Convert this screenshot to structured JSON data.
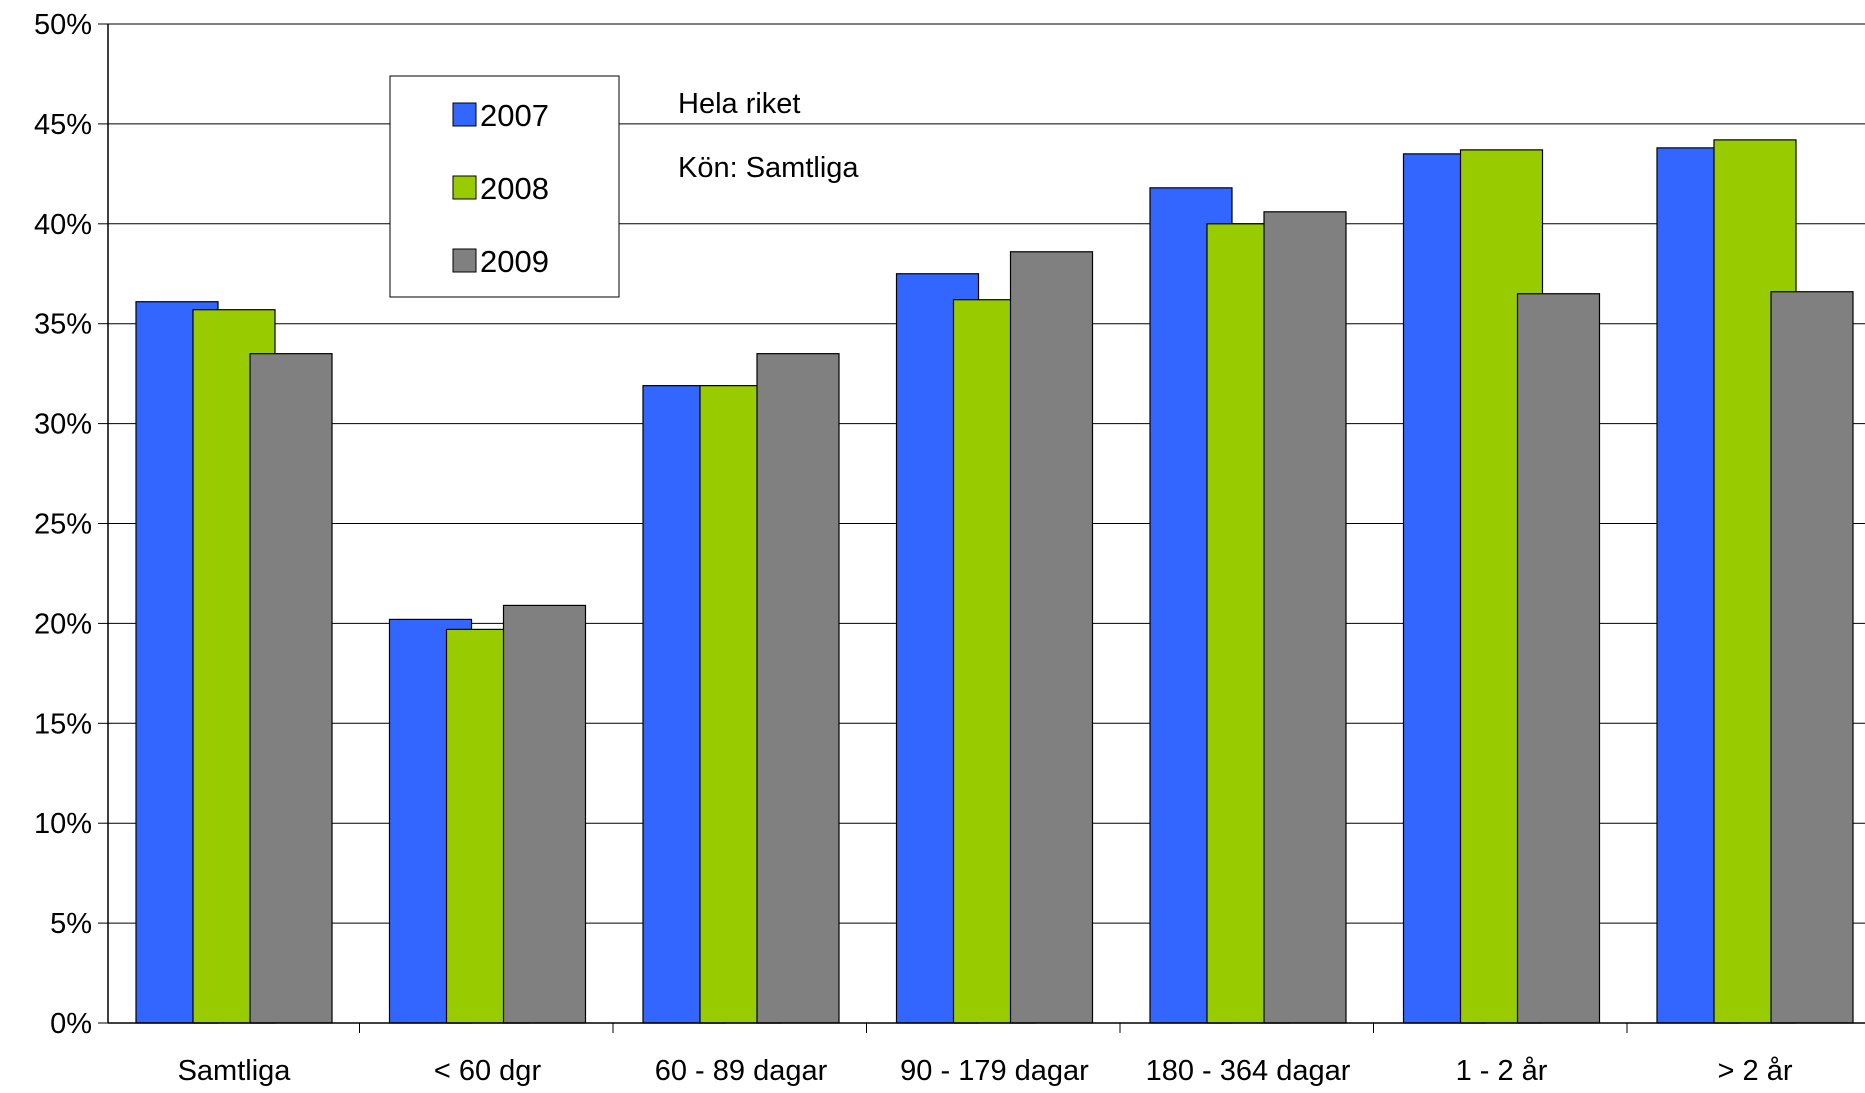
{
  "chart_data": {
    "type": "bar",
    "title": "",
    "xlabel": "",
    "ylabel": "",
    "ylim": [
      0,
      50
    ],
    "y_tick_step": 5,
    "y_tick_suffix": "%",
    "grid": true,
    "legend_position": "top-left",
    "categories": [
      "Samtliga",
      "< 60 dgr",
      "60 - 89 dagar",
      "90 - 179 dagar",
      "180 - 364 dagar",
      "1 - 2 år",
      "> 2 år"
    ],
    "series": [
      {
        "name": "2007",
        "color": "#3366ff",
        "values": [
          36.1,
          20.2,
          31.9,
          37.5,
          41.8,
          43.5,
          43.8
        ]
      },
      {
        "name": "2008",
        "color": "#99cc00",
        "values": [
          35.7,
          19.7,
          31.9,
          36.2,
          40.0,
          43.7,
          44.2
        ]
      },
      {
        "name": "2009",
        "color": "#808080",
        "values": [
          33.5,
          20.9,
          33.5,
          38.6,
          40.6,
          36.5,
          36.6
        ]
      }
    ],
    "annotations": [
      "Hela riket",
      "Kön: Samtliga"
    ]
  }
}
